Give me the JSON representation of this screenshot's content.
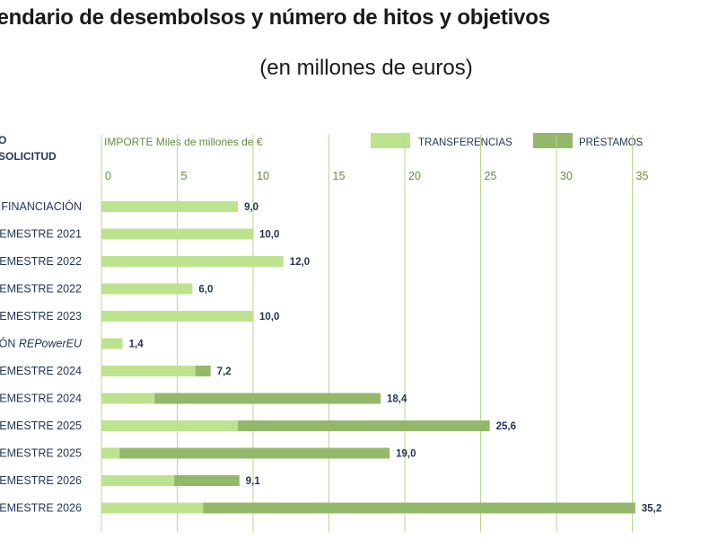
{
  "title": "lendario de desembolsos y número de hitos y objetivos",
  "subtitle": "(en millones de euros)",
  "header": {
    "column_title_line1": "O",
    "column_title_line2": "SOLICITUD",
    "axis_title": "IMPORTE Miles de millones de €"
  },
  "colors": {
    "transferencias": "#bde38f",
    "prestamos": "#93b86a",
    "gridline": "#b5d98f",
    "row_label": "#1e3556",
    "axis_text": "#5f8f3a"
  },
  "chart_data": {
    "type": "bar",
    "orientation": "horizontal",
    "stacked": true,
    "title": "lendario de desembolsos y número de hitos y objetivos",
    "subtitle": "(en millones de euros)",
    "xlabel": "IMPORTE Miles de millones de €",
    "xlim": [
      0,
      35
    ],
    "xticks": [
      0,
      5,
      10,
      15,
      20,
      25,
      30,
      35
    ],
    "grid": true,
    "legend_position": "top-right",
    "categories": [
      "FINANCIACIÓN",
      "EMESTRE 2021",
      "EMESTRE 2022",
      "EMESTRE 2022",
      "EMESTRE 2023",
      "ÓN REPowerEU",
      "EMESTRE 2024",
      "EMESTRE 2024",
      "EMESTRE 2025",
      "EMESTRE 2025",
      "EMESTRE 2026",
      "EMESTRE 2026"
    ],
    "series": [
      {
        "name": "TRANSFERENCIAS",
        "values": [
          9.0,
          10.0,
          12.0,
          6.0,
          10.0,
          1.4,
          6.2,
          3.5,
          9.0,
          1.2,
          4.8,
          6.7
        ]
      },
      {
        "name": "PRÉSTAMOS",
        "values": [
          0,
          0,
          0,
          0,
          0,
          0,
          1.0,
          14.9,
          16.6,
          17.8,
          4.3,
          28.5
        ]
      }
    ],
    "totals": [
      9.0,
      10.0,
      12.0,
      6.0,
      10.0,
      1.4,
      7.2,
      18.4,
      25.6,
      19.0,
      9.1,
      35.2
    ],
    "total_labels": [
      "9,0",
      "10,0",
      "12,0",
      "6,0",
      "10,0",
      "1,4",
      "7,2",
      "18,4",
      "25,6",
      "19,0",
      "9,1",
      "35,2"
    ]
  }
}
